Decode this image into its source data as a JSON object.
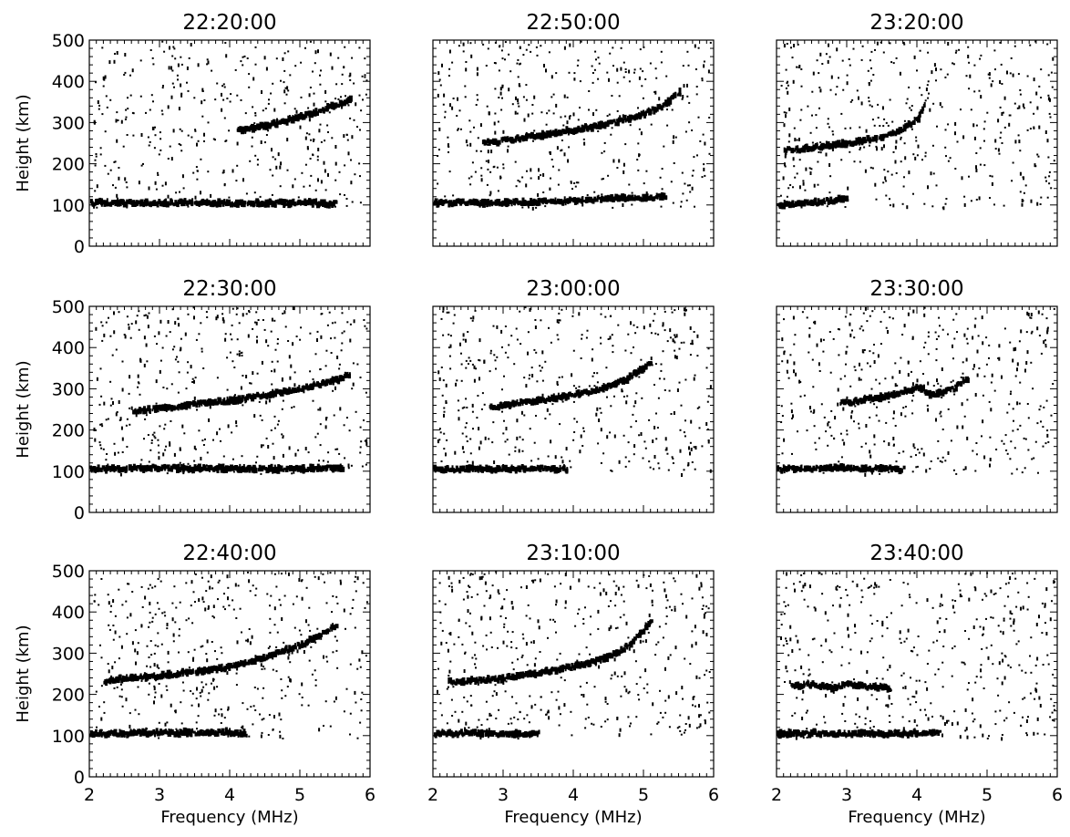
{
  "chart_data": {
    "type": "scatter",
    "layout": "3x3 grid of ionogram panels, columns share x axis, rows share y axis",
    "xlabel": "Frequency (MHz)",
    "ylabel": "Height (km)",
    "xlim": [
      2,
      6
    ],
    "ylim": [
      0,
      500
    ],
    "xticks": [
      "2",
      "3",
      "4",
      "5",
      "6"
    ],
    "yticks": [
      "0",
      "100",
      "200",
      "300",
      "400",
      "500"
    ],
    "grid": false,
    "marker_color": "#000000",
    "panels": [
      {
        "title": "22:20:00",
        "noise_density": 1.0,
        "traces": [
          {
            "x": [
              2.0,
              3.0,
              3.5,
              4.0,
              4.5,
              5.0,
              5.5
            ],
            "y": [
              105,
              105,
              105,
              105,
              105,
              105,
              103
            ]
          },
          {
            "x": [
              4.1,
              4.4,
              4.7,
              5.0,
              5.3,
              5.7
            ],
            "y": [
              280,
              290,
              300,
              315,
              330,
              355
            ]
          }
        ]
      },
      {
        "title": "22:30:00",
        "noise_density": 1.0,
        "traces": [
          {
            "x": [
              2.0,
              3.0,
              4.0,
              5.0,
              5.6
            ],
            "y": [
              105,
              108,
              106,
              106,
              108
            ]
          },
          {
            "x": [
              2.6,
              3.0,
              3.5,
              4.0,
              4.5,
              5.0,
              5.5,
              5.7
            ],
            "y": [
              245,
              252,
              262,
              272,
              285,
              300,
              320,
              335
            ]
          }
        ]
      },
      {
        "title": "22:40:00",
        "noise_density": 1.0,
        "traces": [
          {
            "x": [
              2.0,
              3.0,
              4.0,
              4.2
            ],
            "y": [
              105,
              107,
              108,
              105
            ]
          },
          {
            "x": [
              2.2,
              2.5,
              3.0,
              3.5,
              3.9,
              4.2,
              4.5,
              5.0,
              5.3,
              5.5
            ],
            "y": [
              232,
              238,
              245,
              255,
              265,
              278,
              290,
              320,
              345,
              370
            ]
          }
        ]
      },
      {
        "title": "22:50:00",
        "noise_density": 1.0,
        "traces": [
          {
            "x": [
              2.0,
              3.0,
              4.0,
              4.5,
              5.3
            ],
            "y": [
              105,
              106,
              110,
              115,
              120
            ]
          },
          {
            "x": [
              2.7,
              3.0,
              3.5,
              4.0,
              4.5,
              5.0,
              5.3,
              5.5
            ],
            "y": [
              250,
              257,
              268,
              282,
              298,
              320,
              345,
              375
            ]
          }
        ]
      },
      {
        "title": "23:00:00",
        "noise_density": 1.0,
        "traces": [
          {
            "x": [
              2.0,
              3.0,
              3.9
            ],
            "y": [
              105,
              106,
              105
            ]
          },
          {
            "x": [
              2.8,
              3.2,
              3.6,
              4.0,
              4.4,
              4.7,
              5.0,
              5.1
            ],
            "y": [
              255,
              265,
              275,
              285,
              300,
              320,
              350,
              370
            ]
          }
        ]
      },
      {
        "title": "23:10:00",
        "noise_density": 1.0,
        "traces": [
          {
            "x": [
              2.0,
              2.5,
              3.0,
              3.5
            ],
            "y": [
              105,
              106,
              105,
              104
            ]
          },
          {
            "x": [
              2.2,
              2.6,
              3.0,
              3.5,
              4.0,
              4.4,
              4.7,
              4.9,
              5.1
            ],
            "y": [
              230,
              233,
              240,
              252,
              268,
              285,
              310,
              340,
              380
            ]
          }
        ]
      },
      {
        "title": "23:20:00",
        "noise_density": 1.0,
        "traces": [
          {
            "x": [
              2.0,
              2.5,
              3.0
            ],
            "y": [
              100,
              105,
              115
            ]
          },
          {
            "x": [
              2.1,
              2.5,
              3.0,
              3.5,
              3.8,
              4.0,
              4.1
            ],
            "y": [
              232,
              240,
              250,
              265,
              285,
              310,
              345
            ]
          }
        ]
      },
      {
        "title": "23:30:00",
        "noise_density": 1.0,
        "traces": [
          {
            "x": [
              2.0,
              2.5,
              3.0,
              3.5,
              3.8
            ],
            "y": [
              105,
              106,
              108,
              106,
              105
            ]
          },
          {
            "x": [
              2.9,
              3.2,
              3.5,
              3.8,
              4.0,
              4.2,
              4.5,
              4.7
            ],
            "y": [
              265,
              272,
              280,
              292,
              305,
              285,
              300,
              325
            ]
          }
        ]
      },
      {
        "title": "23:40:00",
        "noise_density": 1.0,
        "traces": [
          {
            "x": [
              2.0,
              2.5,
              3.0,
              3.5,
              4.0,
              4.3
            ],
            "y": [
              105,
              106,
              105,
              105,
              105,
              106
            ]
          },
          {
            "x": [
              2.2,
              2.5,
              2.8,
              3.0,
              3.3,
              3.6
            ],
            "y": [
              220,
              225,
              215,
              225,
              220,
              215
            ]
          }
        ]
      }
    ]
  }
}
